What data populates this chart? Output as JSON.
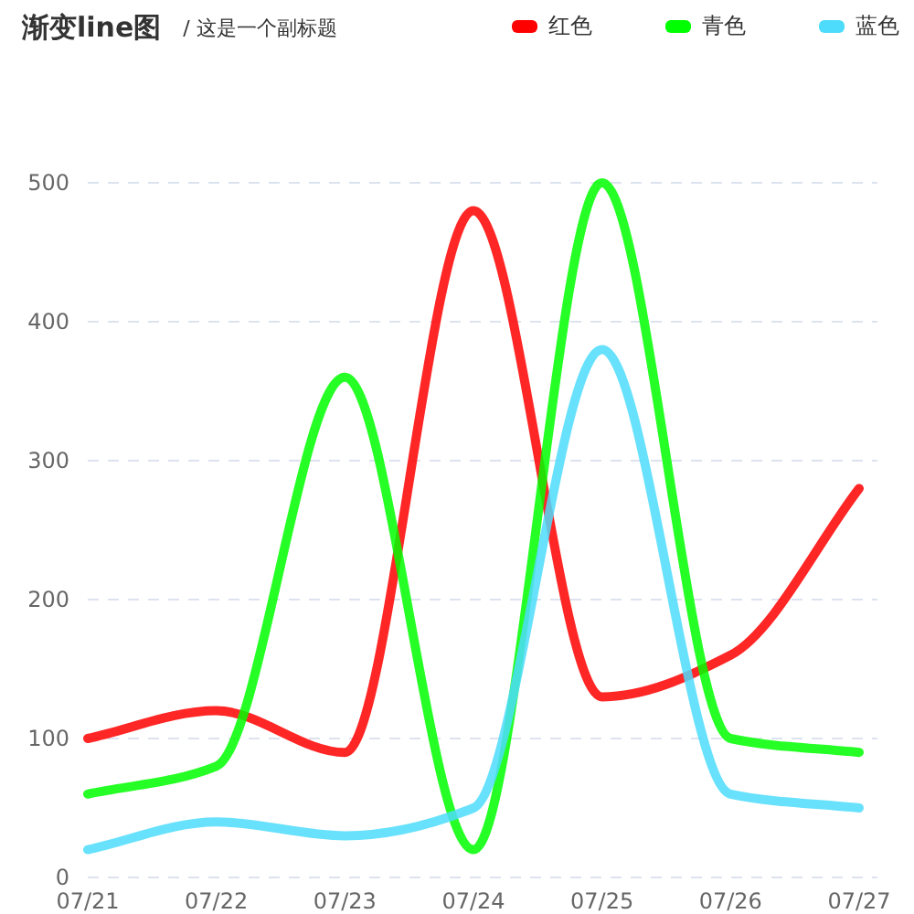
{
  "chart_data": {
    "type": "line",
    "title": "渐变line图",
    "subtitle": "/  这是一个副标题",
    "categories": [
      "07/21",
      "07/22",
      "07/23",
      "07/24",
      "07/25",
      "07/26",
      "07/27"
    ],
    "series": [
      {
        "name": "红色",
        "color": "#ff0000",
        "values": [
          100,
          120,
          90,
          480,
          130,
          160,
          280
        ]
      },
      {
        "name": "青色",
        "color": "#00ff00",
        "values": [
          60,
          80,
          360,
          20,
          500,
          100,
          90
        ]
      },
      {
        "name": "蓝色",
        "color": "#4ddcfb",
        "values": [
          20,
          40,
          30,
          50,
          380,
          60,
          50
        ]
      }
    ],
    "ylim": [
      0,
      500
    ],
    "yticks": [
      0,
      100,
      200,
      300,
      400,
      500
    ],
    "grid": "y",
    "legend": "top right",
    "marker": "none",
    "line_style": "solid"
  }
}
